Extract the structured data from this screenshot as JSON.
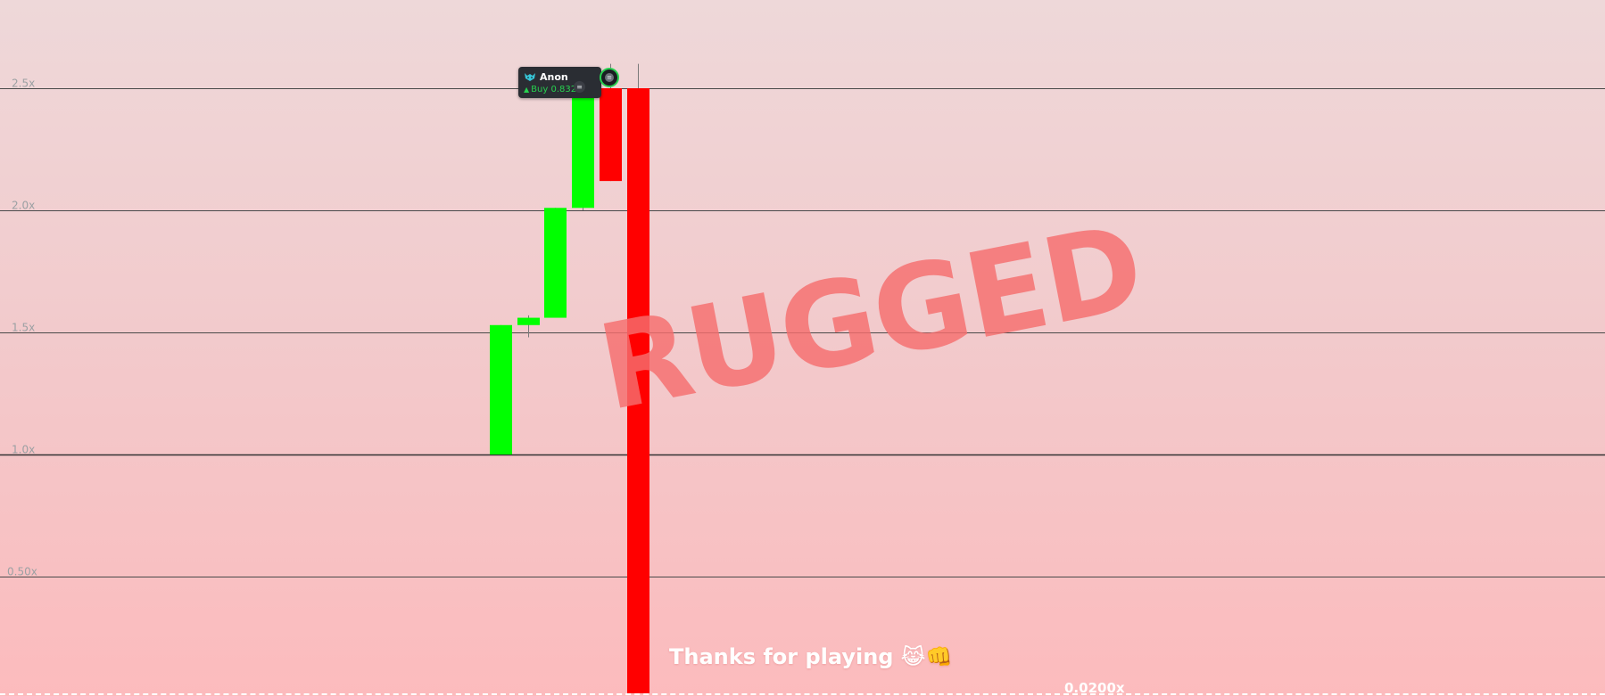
{
  "chart_data": {
    "type": "candlestick",
    "y_ticks": [
      "2.5x",
      "2.0x",
      "1.5x",
      "1.0x",
      "0.50x"
    ],
    "y_tick_values": [
      2.5,
      2.0,
      1.5,
      1.0,
      0.5
    ],
    "ylim": [
      0.02,
      2.85
    ],
    "grid": true,
    "candles": [
      {
        "index": 0,
        "open": 1.0,
        "close": 1.53,
        "high": 1.53,
        "low": 1.0,
        "direction": "up"
      },
      {
        "index": 1,
        "open": 1.53,
        "close": 1.56,
        "high": 1.57,
        "low": 1.48,
        "direction": "up"
      },
      {
        "index": 2,
        "open": 1.56,
        "close": 2.01,
        "high": 2.01,
        "low": 1.56,
        "direction": "up"
      },
      {
        "index": 3,
        "open": 2.01,
        "close": 2.5,
        "high": 2.5,
        "low": 2.0,
        "direction": "up"
      },
      {
        "index": 4,
        "open": 2.5,
        "close": 2.12,
        "high": 2.6,
        "low": 2.12,
        "direction": "down"
      },
      {
        "index": 5,
        "open": 2.5,
        "close": 0.02,
        "high": 2.6,
        "low": 0.02,
        "direction": "down"
      }
    ],
    "colors": {
      "up": "#00ff00",
      "down": "#ff0000",
      "grid": "#4a4a4a",
      "tick_label": "#9ba0a3"
    }
  },
  "overlay": {
    "rugged_text": "RUGGED",
    "rugged_color": "#f56e6e",
    "thanks_text": "Thanks for playing",
    "thanks_emoji": "😹👊",
    "final_multiplier": "0.0200x"
  },
  "trader_card": {
    "name": "Anon",
    "trade": "Buy 0.832",
    "trade_color": "#27d14f",
    "icon": "wolf-icon",
    "badge": "≡"
  },
  "player_marker": {
    "icon": "avatar-marker-icon",
    "badge": "≡",
    "ring_color": "#27d14f"
  }
}
